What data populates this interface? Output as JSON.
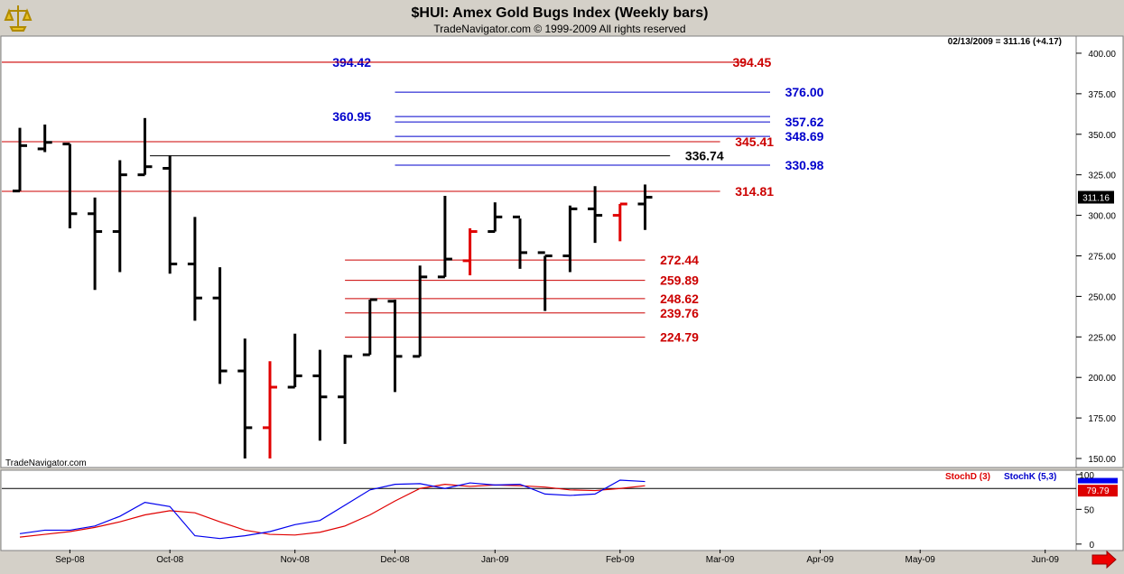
{
  "header": {
    "title": "$HUI:  Amex Gold Bugs Index  (Weekly bars)",
    "subtitle": "TradeNavigator.com © 1999-2009 All rights reserved",
    "last_value_readout": "02/13/2009 = 311.16 (+4.17)",
    "watermark": "TradeNavigator.com"
  },
  "colors": {
    "up_bar": "#000000",
    "down_bar": "#e00000",
    "resistance_red": "#cc0000",
    "resistance_blue": "#0000cc",
    "stoch_d": "#e00000",
    "stoch_k": "#0000ee",
    "panel_bg": "#ffffff"
  },
  "chart_data": [
    {
      "type": "ohlc",
      "title": "$HUI:  Amex Gold Bugs Index  (Weekly bars)",
      "y_axis_side": "right",
      "ylim": [
        145,
        410
      ],
      "y_ticks": [
        "150.00",
        "175.00",
        "200.00",
        "225.00",
        "250.00",
        "275.00",
        "300.00",
        "325.00",
        "350.00",
        "375.00",
        "400.00"
      ],
      "current_value_label": "311.16",
      "bars": [
        {
          "o": 315,
          "h": 354,
          "l": 315,
          "c": 343,
          "color": "black"
        },
        {
          "o": 341,
          "h": 356,
          "l": 339,
          "c": 345,
          "color": "black"
        },
        {
          "o": 344,
          "h": 344,
          "l": 292,
          "c": 301,
          "color": "black"
        },
        {
          "o": 301,
          "h": 311,
          "l": 254,
          "c": 290,
          "color": "black"
        },
        {
          "o": 290,
          "h": 334,
          "l": 265,
          "c": 325,
          "color": "black"
        },
        {
          "o": 325,
          "h": 360,
          "l": 325,
          "c": 330,
          "color": "black"
        },
        {
          "o": 329,
          "h": 337,
          "l": 264,
          "c": 270,
          "color": "black"
        },
        {
          "o": 270,
          "h": 299,
          "l": 235,
          "c": 249,
          "color": "black"
        },
        {
          "o": 249,
          "h": 268,
          "l": 196,
          "c": 204,
          "color": "black"
        },
        {
          "o": 204,
          "h": 224,
          "l": 150,
          "c": 169,
          "color": "black"
        },
        {
          "o": 169,
          "h": 210,
          "l": 150,
          "c": 194,
          "color": "red"
        },
        {
          "o": 194,
          "h": 227,
          "l": 194,
          "c": 201,
          "color": "black"
        },
        {
          "o": 201,
          "h": 217,
          "l": 161,
          "c": 188,
          "color": "black"
        },
        {
          "o": 188,
          "h": 214,
          "l": 159,
          "c": 213,
          "color": "black"
        },
        {
          "o": 214,
          "h": 248,
          "l": 214,
          "c": 248,
          "color": "black"
        },
        {
          "o": 247,
          "h": 248,
          "l": 191,
          "c": 213,
          "color": "black"
        },
        {
          "o": 213,
          "h": 269,
          "l": 213,
          "c": 262,
          "color": "black"
        },
        {
          "o": 262,
          "h": 312,
          "l": 262,
          "c": 273,
          "color": "black"
        },
        {
          "o": 272,
          "h": 292,
          "l": 263,
          "c": 290,
          "color": "red"
        },
        {
          "o": 290,
          "h": 308,
          "l": 290,
          "c": 299,
          "color": "black"
        },
        {
          "o": 299,
          "h": 298,
          "l": 267,
          "c": 277,
          "color": "black"
        },
        {
          "o": 277,
          "h": 275,
          "l": 241,
          "c": 275,
          "color": "black"
        },
        {
          "o": 275,
          "h": 306,
          "l": 265,
          "c": 304,
          "color": "black"
        },
        {
          "o": 304,
          "h": 318,
          "l": 283,
          "c": 300,
          "color": "black"
        },
        {
          "o": 300,
          "h": 307,
          "l": 284,
          "c": 307,
          "color": "red"
        },
        {
          "o": 307,
          "h": 319,
          "l": 291,
          "c": 311.16,
          "color": "black"
        }
      ],
      "x_ticks": [
        {
          "label": "Sep-08",
          "bar": 2
        },
        {
          "label": "Oct-08",
          "bar": 6
        },
        {
          "label": "Nov-08",
          "bar": 11
        },
        {
          "label": "Dec-08",
          "bar": 15
        },
        {
          "label": "Jan-09",
          "bar": 19
        },
        {
          "label": "Feb-09",
          "bar": 24
        },
        {
          "label": "Mar-09",
          "bar": 28
        },
        {
          "label": "Apr-09",
          "bar": 32
        },
        {
          "label": "May-09",
          "bar": 36
        },
        {
          "label": "Jun-09",
          "bar": 41
        }
      ],
      "levels": [
        {
          "value": 394.42,
          "label": "394.42",
          "label_color": "blue",
          "line_color": "red",
          "from_bar": -1,
          "to_bar": 29,
          "label_bar": 12.5
        },
        {
          "value": 394.45,
          "label": "394.45",
          "label_color": "red",
          "line_color": "red",
          "from_bar": -1,
          "to_bar": 29,
          "label_bar": 28.5
        },
        {
          "value": 376.0,
          "label": "376.00",
          "label_color": "blue",
          "line_color": "blue",
          "from_bar": 15,
          "to_bar": 30,
          "label_bar": 30.6
        },
        {
          "value": 360.95,
          "label": "360.95",
          "label_color": "blue",
          "line_color": "blue",
          "from_bar": 15,
          "to_bar": 30,
          "label_bar": 12.5
        },
        {
          "value": 357.62,
          "label": "357.62",
          "label_color": "blue",
          "line_color": "blue",
          "from_bar": 15,
          "to_bar": 30,
          "label_bar": 30.6
        },
        {
          "value": 348.69,
          "label": "348.69",
          "label_color": "blue",
          "line_color": "blue",
          "from_bar": 15,
          "to_bar": 30,
          "label_bar": 30.6
        },
        {
          "value": 345.41,
          "label": "345.41",
          "label_color": "red",
          "line_color": "red",
          "from_bar": -1,
          "to_bar": 28,
          "label_bar": 28.6
        },
        {
          "value": 336.74,
          "label": "336.74",
          "label_color": "black",
          "line_color": "black",
          "from_bar": 5.2,
          "to_bar": 26,
          "label_bar": 26.6
        },
        {
          "value": 330.98,
          "label": "330.98",
          "label_color": "blue",
          "line_color": "blue",
          "from_bar": 15,
          "to_bar": 30,
          "label_bar": 30.6
        },
        {
          "value": 314.81,
          "label": "314.81",
          "label_color": "red",
          "line_color": "red",
          "from_bar": -1,
          "to_bar": 28,
          "label_bar": 28.6
        },
        {
          "value": 272.44,
          "label": "272.44",
          "label_color": "red",
          "line_color": "red",
          "from_bar": 13,
          "to_bar": 25,
          "label_bar": 25.6
        },
        {
          "value": 259.89,
          "label": "259.89",
          "label_color": "red",
          "line_color": "red",
          "from_bar": 13,
          "to_bar": 25,
          "label_bar": 25.6
        },
        {
          "value": 248.62,
          "label": "248.62",
          "label_color": "red",
          "line_color": "red",
          "from_bar": 13,
          "to_bar": 25,
          "label_bar": 25.6
        },
        {
          "value": 239.76,
          "label": "239.76",
          "label_color": "red",
          "line_color": "red",
          "from_bar": 13,
          "to_bar": 25,
          "label_bar": 25.6
        },
        {
          "value": 224.79,
          "label": "224.79",
          "label_color": "red",
          "line_color": "red",
          "from_bar": 13,
          "to_bar": 25,
          "label_bar": 25.6
        }
      ]
    },
    {
      "type": "line",
      "ylim": [
        -8,
        105
      ],
      "y_ticks": [
        "0",
        "50",
        "100"
      ],
      "reference_line": 80,
      "current_value_label": "79.79",
      "legend": [
        "StochD (3)",
        "StochK (5,3)"
      ],
      "series": [
        {
          "name": "StochD (3)",
          "color": "red",
          "values": [
            10,
            14,
            18,
            24,
            32,
            42,
            48,
            45,
            32,
            20,
            14,
            13,
            17,
            26,
            42,
            62,
            80,
            86,
            83,
            85,
            84,
            82,
            78,
            77,
            80,
            84
          ]
        },
        {
          "name": "StochK (5,3)",
          "color": "blue",
          "values": [
            15,
            20,
            20,
            26,
            40,
            60,
            54,
            12,
            8,
            12,
            18,
            28,
            34,
            56,
            78,
            86,
            87,
            80,
            88,
            85,
            86,
            72,
            70,
            72,
            92,
            90
          ]
        }
      ]
    }
  ]
}
